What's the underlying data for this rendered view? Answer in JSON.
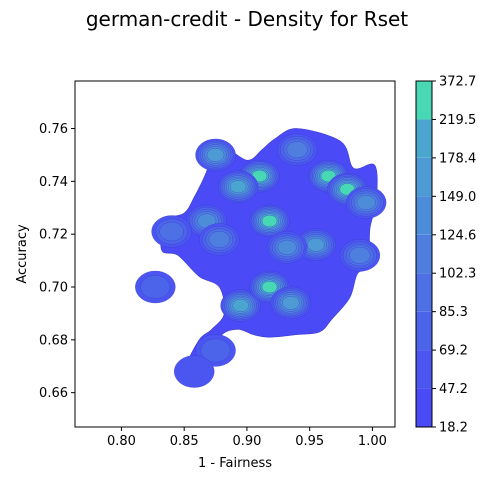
{
  "chart_data": {
    "type": "heatmap",
    "subtype": "filled-density-contour",
    "title": "german-credit - Density for Rset",
    "xlabel": "1 - Fairness",
    "ylabel": "Accuracy",
    "xlim": [
      0.763,
      1.018
    ],
    "ylim": [
      0.647,
      0.778
    ],
    "xticks": [
      "0.80",
      "0.85",
      "0.90",
      "0.95",
      "1.00"
    ],
    "xtick_values": [
      0.8,
      0.85,
      0.9,
      0.95,
      1.0
    ],
    "yticks": [
      "0.66",
      "0.68",
      "0.70",
      "0.72",
      "0.74",
      "0.76"
    ],
    "ytick_values": [
      0.66,
      0.68,
      0.7,
      0.72,
      0.74,
      0.76
    ],
    "colorbar": {
      "levels": [
        "18.2",
        "47.2",
        "69.2",
        "85.3",
        "102.3",
        "124.6",
        "149.0",
        "178.4",
        "219.5",
        "372.7"
      ],
      "colors": [
        "#4a4af6",
        "#4b55f0",
        "#4c64ea",
        "#4d70e4",
        "#4e7fdf",
        "#4d8cd9",
        "#4d9ad5",
        "#4aa6cf",
        "#48d8b4"
      ]
    },
    "density_peaks": [
      {
        "x": 0.91,
        "y": 0.742,
        "level": "219.5"
      },
      {
        "x": 0.965,
        "y": 0.742,
        "level": "219.5"
      },
      {
        "x": 0.98,
        "y": 0.737,
        "level": "219.5"
      },
      {
        "x": 0.918,
        "y": 0.725,
        "level": "219.5"
      },
      {
        "x": 0.895,
        "y": 0.693,
        "level": "178.4"
      },
      {
        "x": 0.918,
        "y": 0.7,
        "level": "219.5"
      },
      {
        "x": 0.935,
        "y": 0.694,
        "level": "149.0"
      },
      {
        "x": 0.955,
        "y": 0.716,
        "level": "149.0"
      },
      {
        "x": 0.875,
        "y": 0.75,
        "level": "149.0"
      },
      {
        "x": 0.893,
        "y": 0.738,
        "level": "178.4"
      },
      {
        "x": 0.995,
        "y": 0.732,
        "level": "124.6"
      },
      {
        "x": 0.99,
        "y": 0.712,
        "level": "102.3"
      },
      {
        "x": 0.868,
        "y": 0.725,
        "level": "124.6"
      },
      {
        "x": 0.878,
        "y": 0.718,
        "level": "102.3"
      },
      {
        "x": 0.84,
        "y": 0.721,
        "level": "85.3"
      },
      {
        "x": 0.827,
        "y": 0.7,
        "level": "69.2"
      },
      {
        "x": 0.875,
        "y": 0.676,
        "level": "69.2"
      },
      {
        "x": 0.858,
        "y": 0.668,
        "level": "47.2"
      },
      {
        "x": 0.94,
        "y": 0.752,
        "level": "102.3"
      },
      {
        "x": 0.932,
        "y": 0.715,
        "level": "124.6"
      }
    ]
  }
}
